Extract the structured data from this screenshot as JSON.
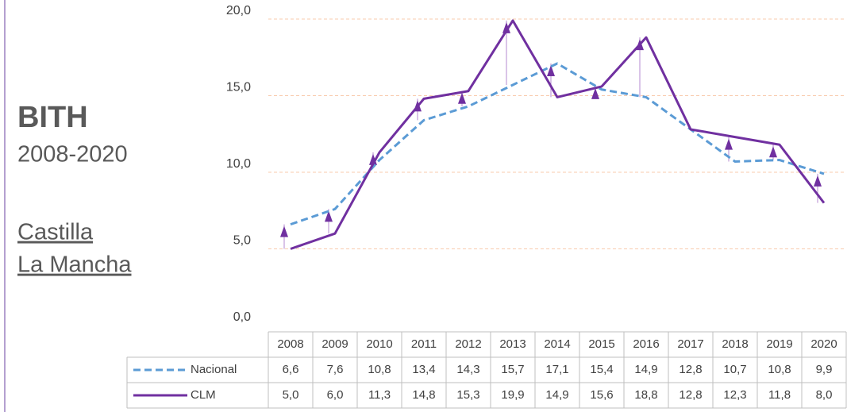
{
  "panel": {
    "title": "BITH",
    "period": "2008-2020",
    "region": [
      "Castilla",
      "La Mancha"
    ]
  },
  "chart_data": {
    "type": "line",
    "categories": [
      "2008",
      "2009",
      "2010",
      "2011",
      "2012",
      "2013",
      "2014",
      "2015",
      "2016",
      "2017",
      "2018",
      "2019",
      "2020"
    ],
    "series": [
      {
        "name": "Nacional",
        "color": "#5b9bd5",
        "values": [
          6.6,
          7.6,
          10.8,
          13.4,
          14.3,
          15.7,
          17.1,
          15.4,
          14.9,
          12.8,
          10.7,
          10.8,
          9.9
        ],
        "value_labels": [
          "6,6",
          "7,6",
          "10,8",
          "13,4",
          "14,3",
          "15,7",
          "17,1",
          "15,4",
          "14,9",
          "12,8",
          "10,7",
          "10,8",
          "9,9"
        ]
      },
      {
        "name": "CLM",
        "color": "#7030a0",
        "values": [
          5.0,
          6.0,
          11.3,
          14.8,
          15.3,
          19.9,
          14.9,
          15.6,
          18.8,
          12.8,
          12.3,
          11.8,
          8.0
        ],
        "value_labels": [
          "5,0",
          "6,0",
          "11,3",
          "14,8",
          "15,3",
          "19,9",
          "14,9",
          "15,6",
          "18,8",
          "12,8",
          "12,3",
          "11,8",
          "8,0"
        ]
      }
    ],
    "ylim": [
      0,
      20
    ],
    "yticks": [
      {
        "value": 0,
        "label": "0,0"
      },
      {
        "value": 5,
        "label": "5,0"
      },
      {
        "value": 10,
        "label": "10,0"
      },
      {
        "value": 15,
        "label": "15,0"
      },
      {
        "value": 20,
        "label": "20,0"
      }
    ],
    "grid": true
  }
}
